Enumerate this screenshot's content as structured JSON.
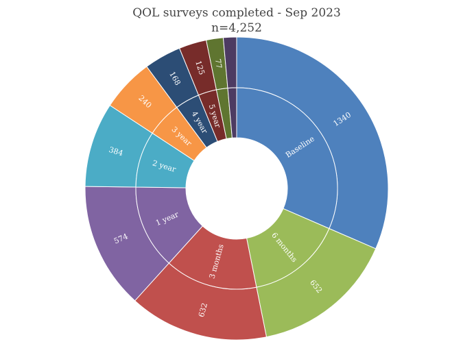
{
  "chart_data": {
    "type": "sunburst",
    "title": "QOL surveys completed - Sep 2023",
    "subtitle": "n=4,252",
    "categories": [
      "Baseline",
      "6 months",
      "3 months",
      "1 year",
      "2 year",
      "3 year",
      "4 year",
      "5 year",
      "",
      ""
    ],
    "values": [
      1340,
      652,
      632,
      574,
      384,
      240,
      168,
      125,
      77,
      60
    ],
    "value_labels": [
      "1340",
      "652",
      "632",
      "574",
      "384",
      "240",
      "168",
      "125",
      "77",
      ""
    ],
    "colors": [
      "#4e81bd",
      "#9bbb59",
      "#c0504d",
      "#8064a2",
      "#4bacc6",
      "#f79646",
      "#2c4d75",
      "#772c2a",
      "#5f7530",
      "#4d3b62"
    ],
    "start_angle_deg": 0,
    "direction": "clockwise"
  }
}
